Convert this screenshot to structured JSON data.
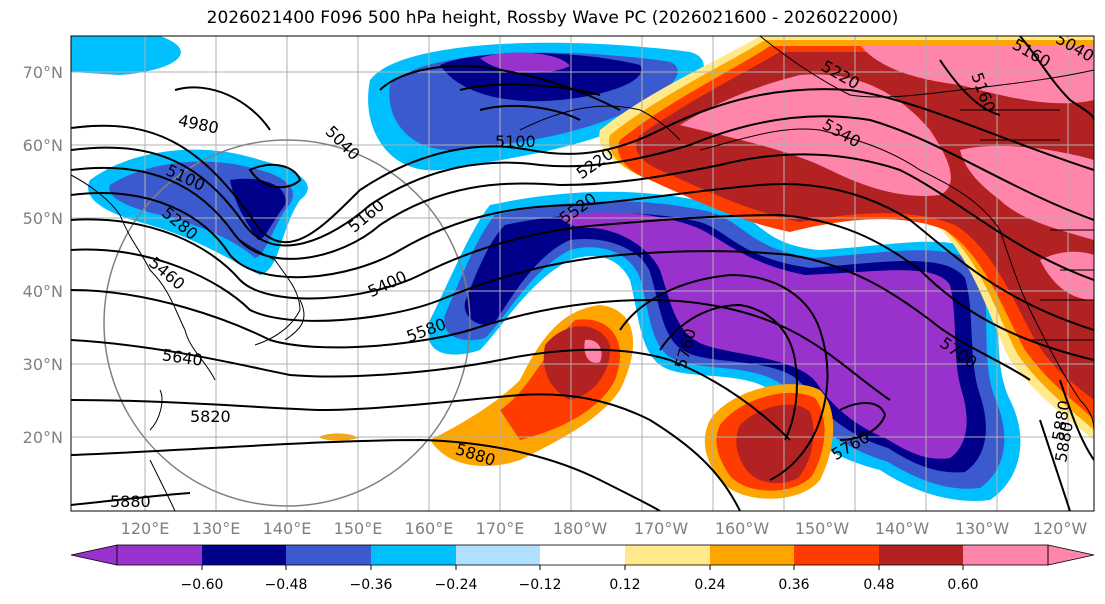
{
  "title": "2026021400 F096 500 hPa height, Rossby Wave PC (2026021600 - 2026022000)",
  "lat_ticks": [
    "70°N",
    "60°N",
    "50°N",
    "40°N",
    "30°N",
    "20°N"
  ],
  "lon_ticks": [
    "120°E",
    "130°E",
    "140°E",
    "150°E",
    "160°E",
    "170°E",
    "180°W",
    "170°W",
    "160°W",
    "150°W",
    "140°W",
    "130°W",
    "120°W"
  ],
  "colorbar": {
    "ticks": [
      "−0.60",
      "−0.48",
      "−0.36",
      "−0.24",
      "−0.12",
      "0.12",
      "0.24",
      "0.36",
      "0.48",
      "0.60"
    ],
    "colors": [
      "#9932cc",
      "#00008b",
      "#3a5acd",
      "#00bfff",
      "#b0e0ff",
      "#ffffff",
      "#ffe98a",
      "#ffa500",
      "#ff3c00",
      "#b22222",
      "#ff85aa"
    ]
  },
  "contour_labels": [
    "4980",
    "5040",
    "5100",
    "5160",
    "5100",
    "5280",
    "5460",
    "5220",
    "5340",
    "5520",
    "5400",
    "5580",
    "5640",
    "5820",
    "5880",
    "5880",
    "5760",
    "5760",
    "5700",
    "5880",
    "5220",
    "5160",
    "5040",
    "5160",
    "5880"
  ],
  "colors": {
    "fill_pos_strong": "#b22222",
    "fill_neg_strong": "#9932cc"
  }
}
